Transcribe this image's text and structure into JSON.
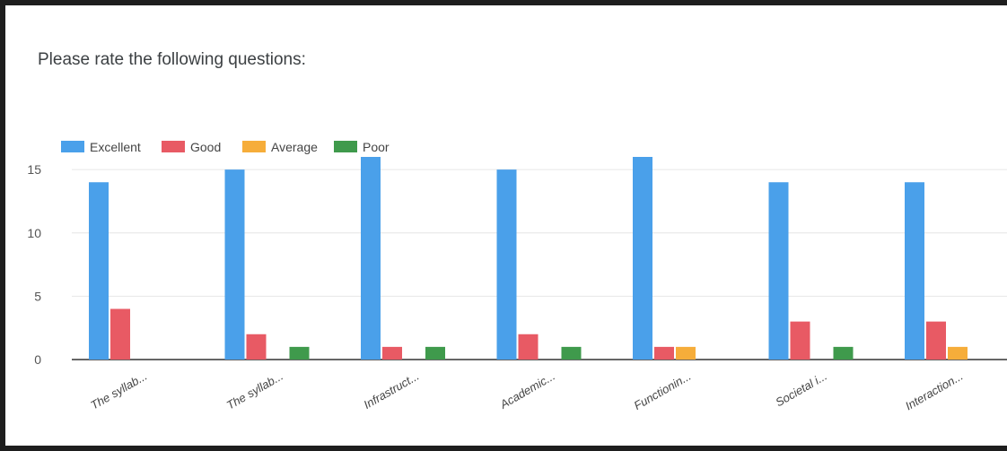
{
  "page": {
    "title": "Please rate the following questions:"
  },
  "colors": {
    "series": [
      "#4aa0ea",
      "#e85a64",
      "#f6ad3a",
      "#3f9a4c"
    ],
    "grid": "#e6e6e6",
    "axis": "#333333"
  },
  "chart_data": {
    "type": "bar",
    "title": "Please rate the following questions:",
    "categories": [
      "The syllab...",
      "The syllab...",
      "Infrastruct...",
      "Academic...",
      "Functionin...",
      "Societal i...",
      "Interaction..."
    ],
    "series": [
      {
        "name": "Excellent",
        "values": [
          14,
          15,
          16,
          15,
          16,
          14,
          14
        ]
      },
      {
        "name": "Good",
        "values": [
          4,
          2,
          1,
          2,
          1,
          3,
          3
        ]
      },
      {
        "name": "Average",
        "values": [
          0,
          0,
          0,
          0,
          1,
          0,
          1
        ]
      },
      {
        "name": "Poor",
        "values": [
          0,
          1,
          1,
          1,
          0,
          1,
          0
        ]
      }
    ],
    "yticks": [
      0,
      5,
      10,
      15
    ],
    "ylim": [
      0,
      16
    ],
    "grid": true,
    "legend_position": "top-left"
  }
}
